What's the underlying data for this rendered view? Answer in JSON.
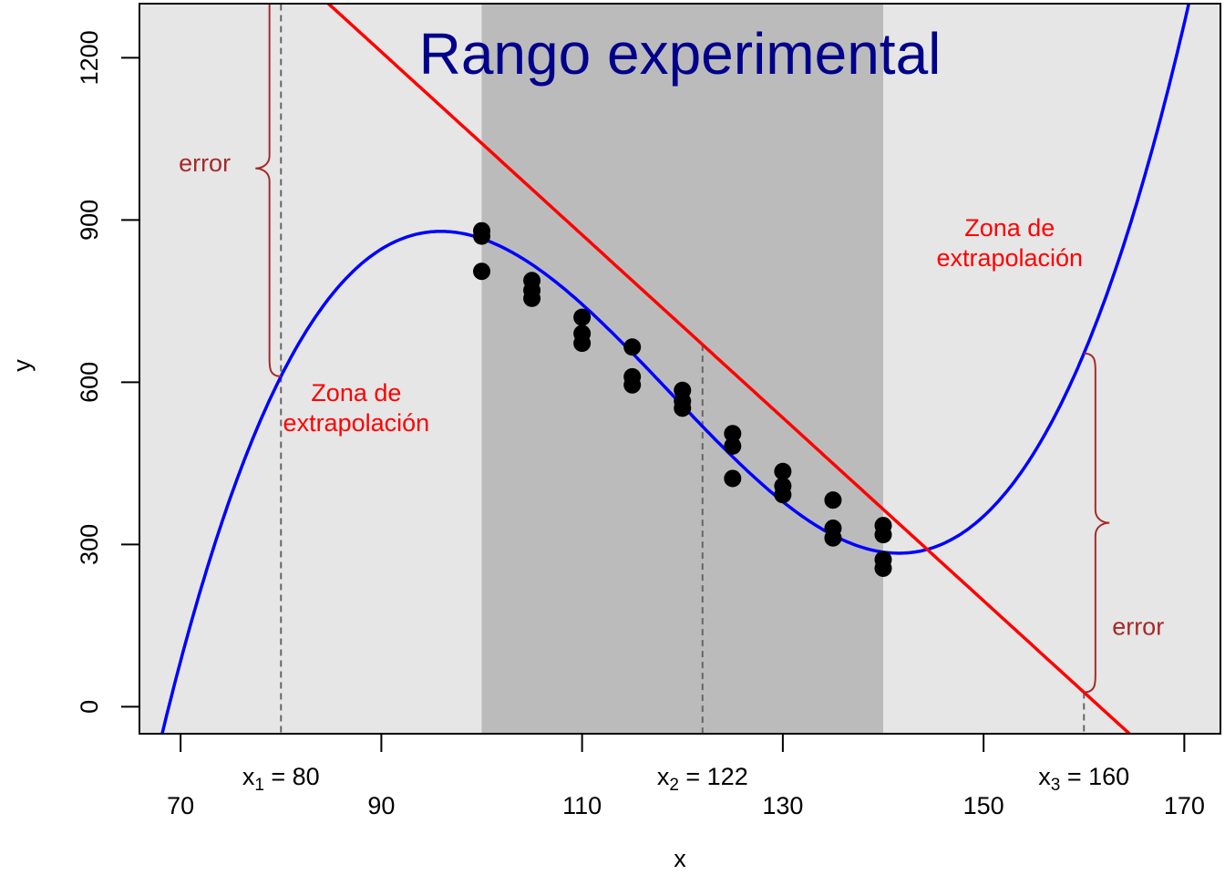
{
  "chart_data": {
    "type": "scatter",
    "title": "Rango experimental",
    "xlabel": "x",
    "ylabel": "y",
    "xlim": [
      65.9,
      173.6
    ],
    "ylim": [
      -50,
      1300
    ],
    "x_ticks": [
      70,
      90,
      110,
      130,
      150,
      170
    ],
    "y_ticks": [
      0,
      300,
      600,
      900,
      1200
    ],
    "experimental_range": [
      100,
      140
    ],
    "points": [
      {
        "x": 100,
        "y": 880
      },
      {
        "x": 100,
        "y": 870
      },
      {
        "x": 100,
        "y": 805
      },
      {
        "x": 105,
        "y": 788
      },
      {
        "x": 105,
        "y": 770
      },
      {
        "x": 105,
        "y": 755
      },
      {
        "x": 110,
        "y": 720
      },
      {
        "x": 110,
        "y": 690
      },
      {
        "x": 110,
        "y": 672
      },
      {
        "x": 115,
        "y": 665
      },
      {
        "x": 115,
        "y": 610
      },
      {
        "x": 115,
        "y": 595
      },
      {
        "x": 120,
        "y": 585
      },
      {
        "x": 120,
        "y": 565
      },
      {
        "x": 120,
        "y": 552
      },
      {
        "x": 125,
        "y": 505
      },
      {
        "x": 125,
        "y": 482
      },
      {
        "x": 125,
        "y": 422
      },
      {
        "x": 130,
        "y": 435
      },
      {
        "x": 130,
        "y": 408
      },
      {
        "x": 130,
        "y": 392
      },
      {
        "x": 135,
        "y": 382
      },
      {
        "x": 135,
        "y": 330
      },
      {
        "x": 135,
        "y": 312
      },
      {
        "x": 140,
        "y": 335
      },
      {
        "x": 140,
        "y": 318
      },
      {
        "x": 140,
        "y": 272
      },
      {
        "x": 140,
        "y": 256
      }
    ],
    "series": [
      {
        "type": "line",
        "color": "#ff0000",
        "intercept": 2733.33,
        "slope": -16.9167
      },
      {
        "type": "cubic",
        "color": "#0000ff",
        "coefficients": {
          "center": 118.75,
          "a": 581.33,
          "b": -19.56,
          "c": 0,
          "d": 0.01252
        }
      }
    ],
    "marked_x": [
      {
        "name": "x",
        "sub": "1",
        "value": "80",
        "x": 80
      },
      {
        "name": "x",
        "sub": "2",
        "value": "122",
        "x": 122
      },
      {
        "name": "x",
        "sub": "3",
        "value": "160",
        "x": 160
      }
    ],
    "zone_labels": [
      {
        "lines": [
          "Zona de",
          "extrapolación"
        ],
        "x": 87.5,
        "y": 565
      },
      {
        "lines": [
          "Zona de",
          "extrapolación"
        ],
        "x": 152.6,
        "y": 870
      }
    ],
    "error_labels": [
      {
        "text": "error",
        "x_at": 80,
        "label_x": 72.4,
        "label_y": 1005
      },
      {
        "text": "error",
        "x_at": 160,
        "label_x": 165.4,
        "label_y": 148
      }
    ],
    "colors": {
      "panel_background": "#e6e6e6",
      "experimental_band": "#bbbbbb",
      "title": "#00008b",
      "zone_label": "#ff0000",
      "error": "#a52a2a",
      "points": "#000000",
      "guide_lines": "#666666"
    }
  }
}
